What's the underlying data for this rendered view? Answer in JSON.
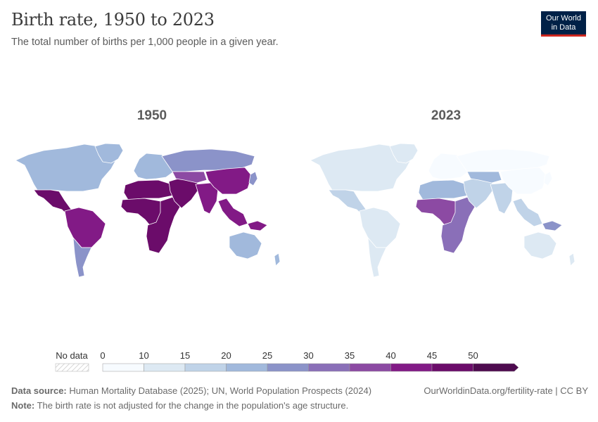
{
  "header": {
    "title": "Birth rate, 1950 to 2023",
    "subtitle": "The total number of births per 1,000 people in a given year.",
    "logo_line1": "Our World",
    "logo_line2": "in Data"
  },
  "chart_data": {
    "type": "choropleth-map",
    "title": "Birth rate, 1950 to 2023",
    "metric": "Births per 1,000 people",
    "maps": [
      {
        "year": "1950",
        "regions": [
          {
            "name": "North America",
            "value": 24
          },
          {
            "name": "Greenland",
            "value": 24
          },
          {
            "name": "Mexico & Central America",
            "value": 46
          },
          {
            "name": "South America",
            "value": 44
          },
          {
            "name": "Southern Cone",
            "value": 26
          },
          {
            "name": "Europe",
            "value": 21
          },
          {
            "name": "Russia",
            "value": 27
          },
          {
            "name": "North Africa",
            "value": 47
          },
          {
            "name": "West & Central Africa",
            "value": 49
          },
          {
            "name": "East & Southern Africa",
            "value": 45
          },
          {
            "name": "Middle East",
            "value": 48
          },
          {
            "name": "Central Asia",
            "value": 38
          },
          {
            "name": "South Asia",
            "value": 43
          },
          {
            "name": "China & East Asia",
            "value": 40
          },
          {
            "name": "Southeast Asia",
            "value": 42
          },
          {
            "name": "Japan",
            "value": 28
          },
          {
            "name": "Australia",
            "value": 23
          },
          {
            "name": "New Guinea",
            "value": 44
          },
          {
            "name": "New Zealand",
            "value": 24
          }
        ]
      },
      {
        "year": "2023",
        "regions": [
          {
            "name": "North America",
            "value": 11
          },
          {
            "name": "Greenland",
            "value": 13
          },
          {
            "name": "Mexico & Central America",
            "value": 17
          },
          {
            "name": "South America",
            "value": 14
          },
          {
            "name": "Southern Cone",
            "value": 12
          },
          {
            "name": "Europe",
            "value": 9
          },
          {
            "name": "Russia",
            "value": 9
          },
          {
            "name": "North Africa",
            "value": 21
          },
          {
            "name": "West & Central Africa",
            "value": 38
          },
          {
            "name": "East & Southern Africa",
            "value": 31
          },
          {
            "name": "Middle East",
            "value": 19
          },
          {
            "name": "Central Asia",
            "value": 22
          },
          {
            "name": "South Asia",
            "value": 17
          },
          {
            "name": "China & East Asia",
            "value": 8
          },
          {
            "name": "Southeast Asia",
            "value": 15
          },
          {
            "name": "Japan",
            "value": 6
          },
          {
            "name": "Australia",
            "value": 12
          },
          {
            "name": "New Guinea",
            "value": 25
          },
          {
            "name": "New Zealand",
            "value": 11
          }
        ]
      }
    ],
    "legend": {
      "no_data_label": "No data",
      "tick_labels": [
        "0",
        "10",
        "15",
        "20",
        "25",
        "30",
        "35",
        "40",
        "45",
        "50"
      ],
      "bins": [
        0,
        10,
        15,
        20,
        25,
        30,
        35,
        40,
        45,
        50,
        60
      ],
      "colors": [
        "#f7fbff",
        "#dde9f3",
        "#c0d3e8",
        "#a1b9dc",
        "#8b93c9",
        "#8a6fb8",
        "#8c4aa3",
        "#821a86",
        "#6b0c6a",
        "#4e0b4f"
      ]
    }
  },
  "footer": {
    "source_label": "Data source:",
    "source_text": "Human Mortality Database (2025); UN, World Population Prospects (2024)",
    "note_label": "Note:",
    "note_text": "The birth rate is not adjusted for the change in the population's age structure.",
    "url": "OurWorldinData.org/fertility-rate | CC BY"
  }
}
